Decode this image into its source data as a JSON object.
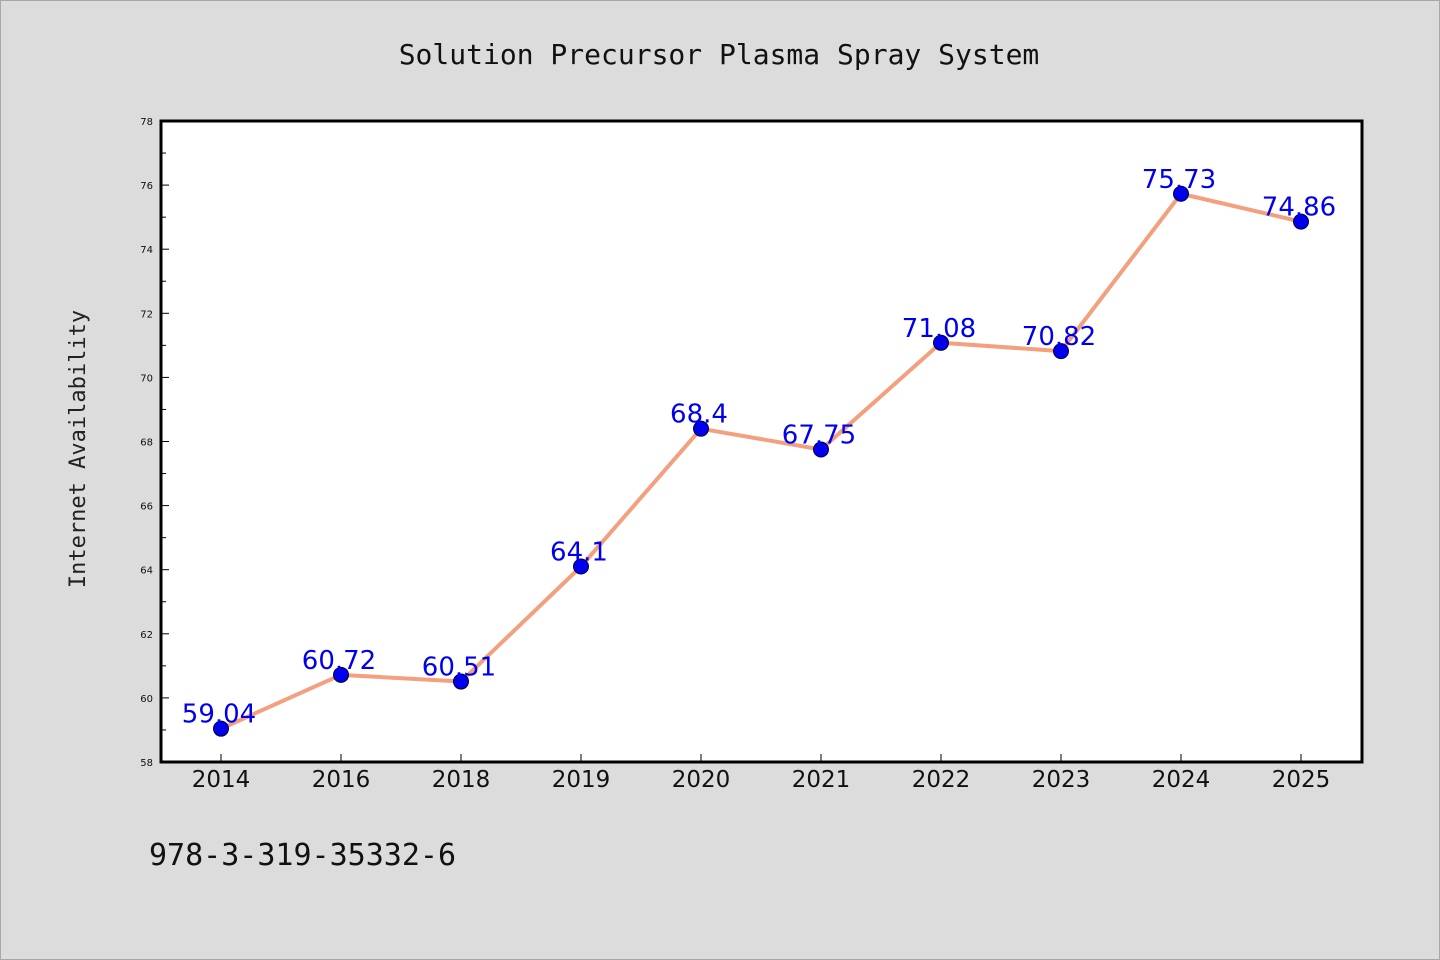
{
  "chart_data": {
    "type": "line",
    "title": "Solution Precursor Plasma Spray System",
    "xlabel": "",
    "ylabel": "Internet Availability",
    "categories": [
      "2014",
      "2016",
      "2018",
      "2019",
      "2020",
      "2021",
      "2022",
      "2023",
      "2024",
      "2025"
    ],
    "series": [
      {
        "values": [
          59.04,
          60.72,
          60.51,
          64.1,
          68.4,
          67.75,
          71.08,
          70.82,
          75.73,
          74.86
        ],
        "labels": [
          "59.04",
          "60.72",
          "60.51",
          "64.1",
          "68.4",
          "67.75",
          "71.08",
          "70.82",
          "75.73",
          "74.86"
        ],
        "line_color": "#f4a07e",
        "marker_color": "#0000ee",
        "label_color": "#0000ee"
      }
    ],
    "ylim": [
      58,
      78
    ],
    "yticks": [
      "58",
      "60",
      "62",
      "64",
      "66",
      "68",
      "70",
      "72",
      "74",
      "76",
      "78"
    ],
    "grid": false,
    "legend": "none"
  },
  "footnote": "978-3-319-35332-6",
  "colors": {
    "background": "#dcdcdc",
    "plot_background": "#ffffff"
  }
}
